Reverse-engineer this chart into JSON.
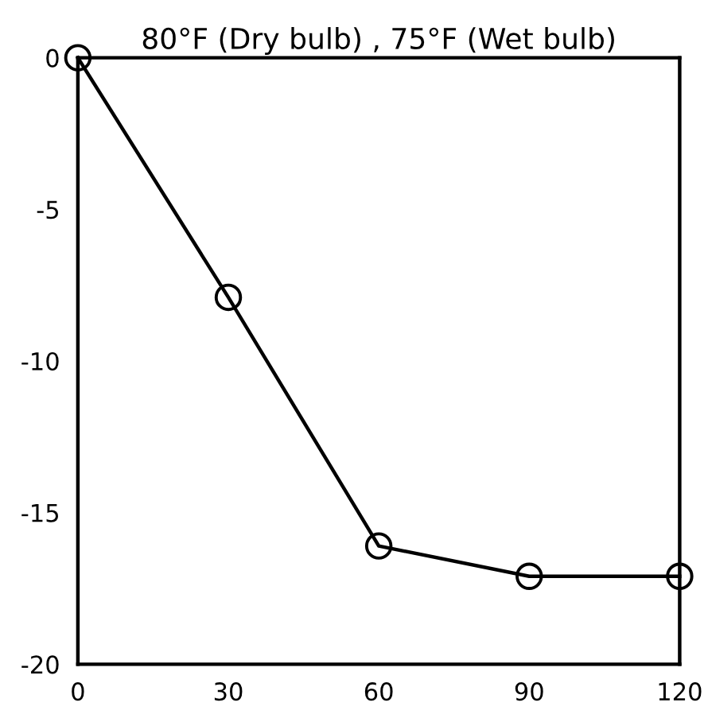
{
  "chart_data": {
    "type": "line",
    "title": "80°F (Dry bulb) , 75°F (Wet bulb)",
    "x": [
      0,
      30,
      60,
      90,
      120
    ],
    "series": [
      {
        "color": "#000000",
        "values": [
          0,
          -7.9,
          -16.1,
          -17.1,
          -17.1
        ]
      }
    ],
    "xlim": [
      0,
      120
    ],
    "ylim": [
      -20,
      0
    ],
    "xticks": [
      0,
      30,
      60,
      90,
      120
    ],
    "yticks": [
      0,
      -5,
      -10,
      -15,
      -20
    ],
    "marker": "circle",
    "grid": false,
    "legend": false
  }
}
